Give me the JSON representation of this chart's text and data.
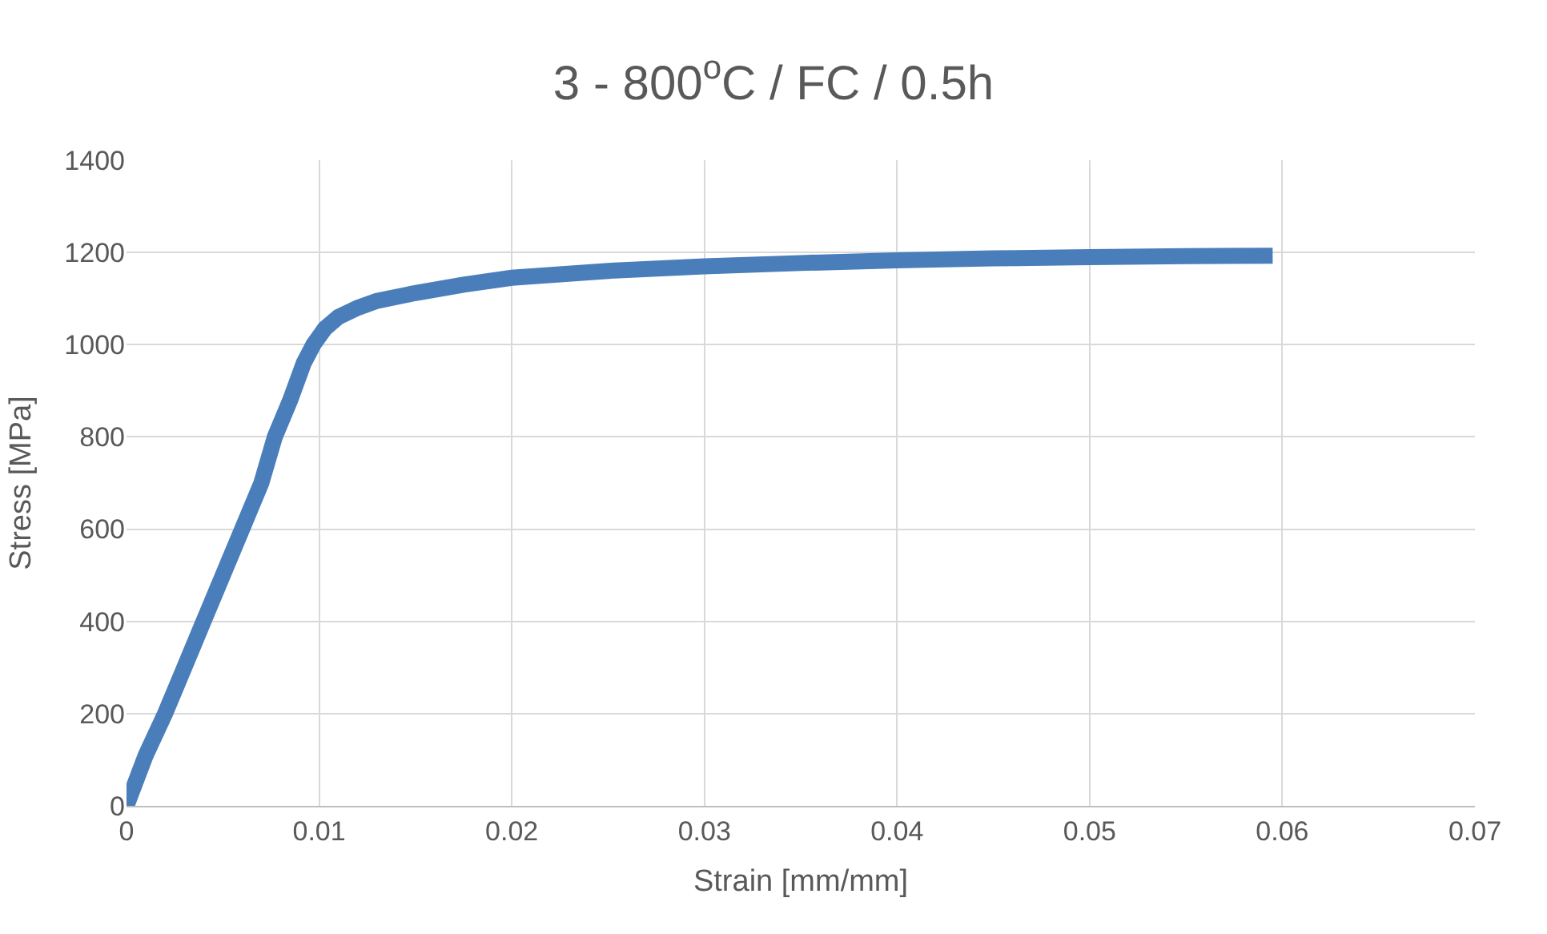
{
  "chart_data": {
    "type": "line",
    "title": "3 - 800$^{o}$C / FC / 0.5h",
    "xlabel": "Strain [mm/mm]",
    "ylabel": "Stress [MPa]",
    "x": [
      0,
      0.001,
      0.002,
      0.003,
      0.004,
      0.005,
      0.006,
      0.007,
      0.0077,
      0.0085,
      0.0092,
      0.0097,
      0.0103,
      0.011,
      0.012,
      0.013,
      0.015,
      0.0175,
      0.02,
      0.025,
      0.03,
      0.035,
      0.04,
      0.045,
      0.05,
      0.055,
      0.0595
    ],
    "series": [
      {
        "color": "#4a7ebb",
        "values": [
          0,
          110,
          200,
          300,
          400,
          500,
          600,
          700,
          800,
          880,
          960,
          1000,
          1035,
          1060,
          1080,
          1095,
          1112,
          1130,
          1145,
          1160,
          1170,
          1177,
          1183,
          1187,
          1190,
          1192,
          1193
        ]
      }
    ],
    "xlim": [
      0,
      0.07
    ],
    "xticks": [
      0,
      0.01,
      0.02,
      0.03,
      0.04,
      0.05,
      0.06,
      0.07
    ],
    "ylim": [
      0,
      1400
    ],
    "yticks": [
      0,
      200,
      400,
      600,
      800,
      1000,
      1200,
      1400
    ],
    "grid": true,
    "marker": "none",
    "line_style": "solid"
  }
}
